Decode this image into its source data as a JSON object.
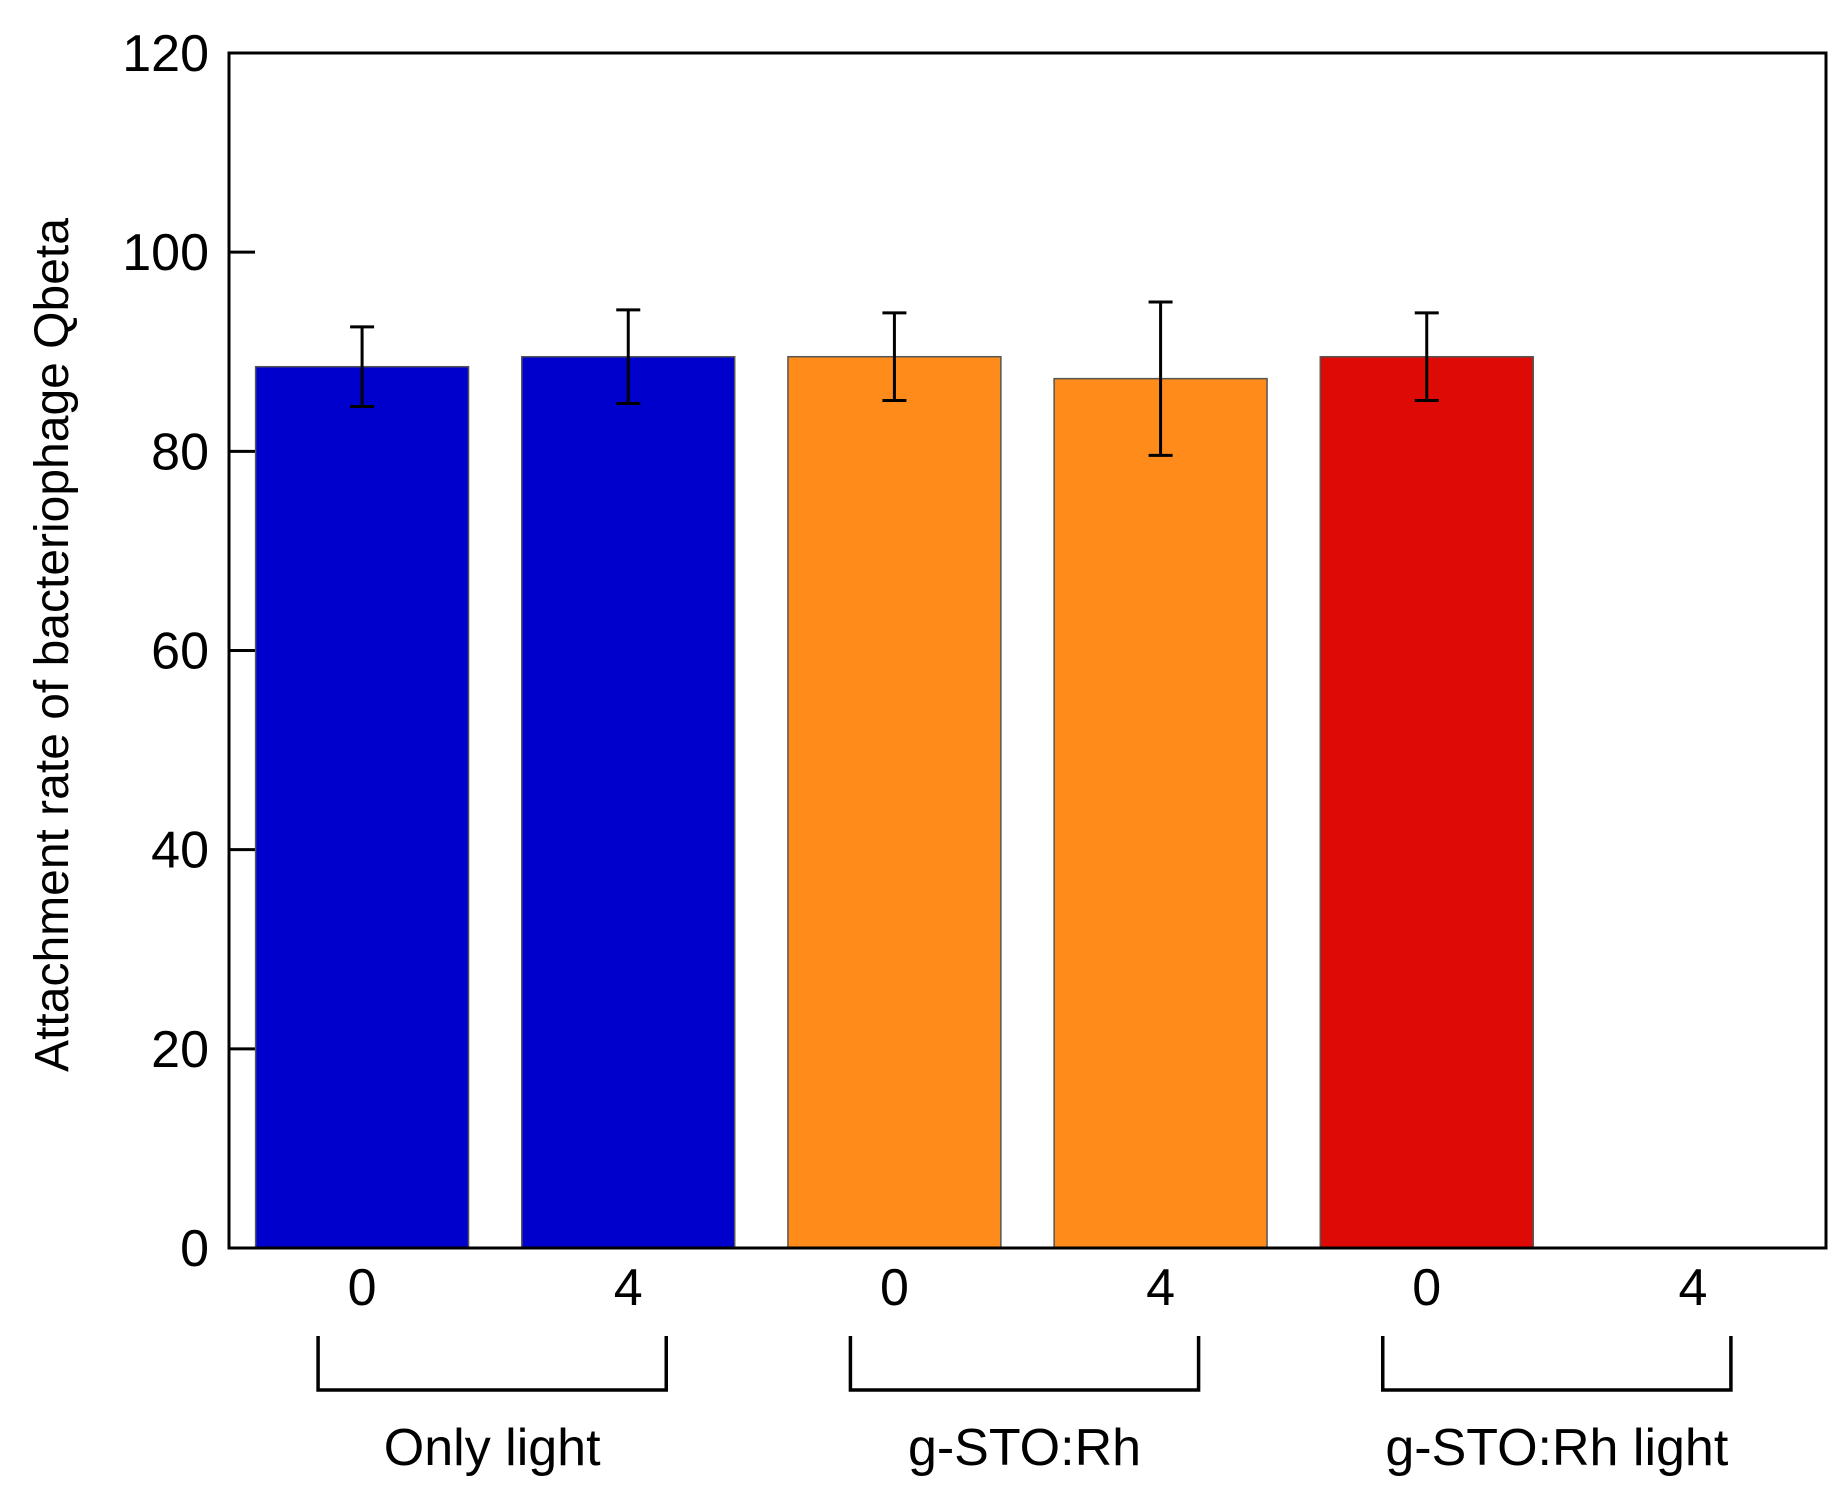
{
  "chart_data": {
    "type": "bar",
    "title": "",
    "xlabel": "",
    "ylabel": "Attachment rate of bacteriophage Qbeta",
    "ylim": [
      0,
      120
    ],
    "yticks": [
      "0",
      "20",
      "40",
      "60",
      "80",
      "100",
      "120"
    ],
    "grid": false,
    "categories": [
      "0",
      "4",
      "0",
      "4",
      "0",
      "4"
    ],
    "values": [
      88.5,
      89.5,
      89.5,
      87.3,
      89.5,
      0
    ],
    "errors": [
      4.0,
      4.7,
      4.4,
      7.7,
      4.4,
      0
    ],
    "colors": [
      "#0000cc",
      "#0000cc",
      "#ff8c1a",
      "#ff8c1a",
      "#dd0a05",
      "#dd0a05"
    ],
    "groups": [
      {
        "label": "Only light",
        "categories": [
          0,
          1
        ]
      },
      {
        "label": "g-STO:Rh",
        "categories": [
          2,
          3
        ]
      },
      {
        "label": "g-STO:Rh light",
        "categories": [
          4,
          5
        ]
      }
    ]
  }
}
